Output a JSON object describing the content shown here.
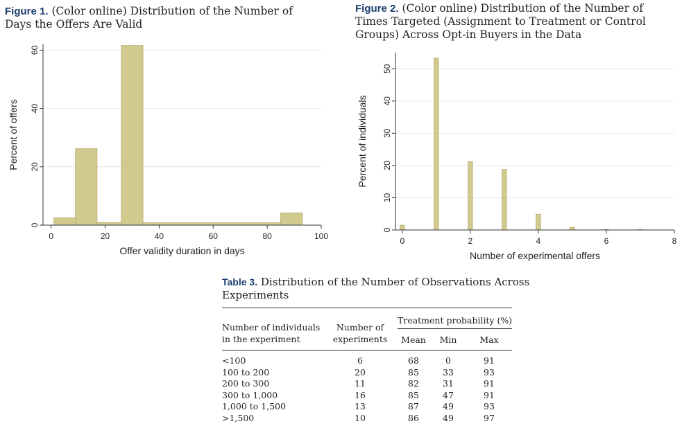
{
  "figure1": {
    "label": "Figure 1.",
    "caption_line1": "(Color online) Distribution of the Number of",
    "caption_line2": "Days the Offers Are Valid"
  },
  "figure2": {
    "label": "Figure 2.",
    "caption_line1": "(Color online) Distribution of the Number of",
    "caption_line2": "Times Targeted (Assignment to Treatment or Control",
    "caption_line3": "Groups) Across Opt-in Buyers in the Data"
  },
  "colors": {
    "bar_fill": "#d2c98f",
    "bar_stroke": "#b3a869",
    "caption_label": "#1d3f6e",
    "grid": "#e6e6e6"
  },
  "chart_data": [
    {
      "type": "bar",
      "title": "",
      "xlabel": "Offer validity duration in days",
      "ylabel": "Percent of offers",
      "xlim": [
        -3,
        100
      ],
      "ylim": [
        0,
        62
      ],
      "xticks": [
        0,
        20,
        40,
        60,
        80,
        100
      ],
      "yticks": [
        0,
        20,
        40,
        60
      ],
      "grid": true,
      "bins": [
        {
          "x0": 1,
          "x1": 9,
          "value": 2.5
        },
        {
          "x0": 9,
          "x1": 17,
          "value": 26.2
        },
        {
          "x0": 17,
          "x1": 26,
          "value": 0.9
        },
        {
          "x0": 26,
          "x1": 34,
          "value": 61.6
        },
        {
          "x0": 34,
          "x1": 85,
          "value": 0.8
        },
        {
          "x0": 85,
          "x1": 93,
          "value": 4.2
        }
      ]
    },
    {
      "type": "bar",
      "title": "",
      "xlabel": "Number of experimental offers",
      "ylabel": "Percent of individuals",
      "xlim": [
        -0.2,
        8
      ],
      "ylim": [
        0,
        55
      ],
      "xticks": [
        0,
        2,
        4,
        6,
        8
      ],
      "yticks": [
        0,
        10,
        20,
        30,
        40,
        50
      ],
      "grid": true,
      "bars": [
        {
          "x": 0,
          "value": 1.5
        },
        {
          "x": 1,
          "value": 53.3
        },
        {
          "x": 2,
          "value": 21.2
        },
        {
          "x": 3,
          "value": 18.8
        },
        {
          "x": 4,
          "value": 4.9
        },
        {
          "x": 5,
          "value": 0.9
        },
        {
          "x": 6,
          "value": 0.2
        },
        {
          "x": 7,
          "value": 0.2
        }
      ]
    }
  ],
  "table3": {
    "label": "Table 3.",
    "caption_line1": "Distribution of the Number of Observations Across",
    "caption_line2": "Experiments",
    "header": {
      "col1_line1": "Number of individuals",
      "col1_line2": "in the experiment",
      "col2_line1": "Number of",
      "col2_line2": "experiments",
      "group": "Treatment probability (%)",
      "mean": "Mean",
      "min": "Min",
      "max": "Max"
    },
    "rows": [
      {
        "range": "<100",
        "n": "6",
        "mean": "68",
        "min": "0",
        "max": "91"
      },
      {
        "range": "100 to 200",
        "n": "20",
        "mean": "85",
        "min": "33",
        "max": "93"
      },
      {
        "range": "200 to 300",
        "n": "11",
        "mean": "82",
        "min": "31",
        "max": "91"
      },
      {
        "range": "300 to 1,000",
        "n": "16",
        "mean": "85",
        "min": "47",
        "max": "91"
      },
      {
        "range": "1,000 to 1,500",
        "n": "13",
        "mean": "87",
        "min": "49",
        "max": "93"
      },
      {
        "range": ">1,500",
        "n": "10",
        "mean": "86",
        "min": "49",
        "max": "97"
      }
    ]
  }
}
